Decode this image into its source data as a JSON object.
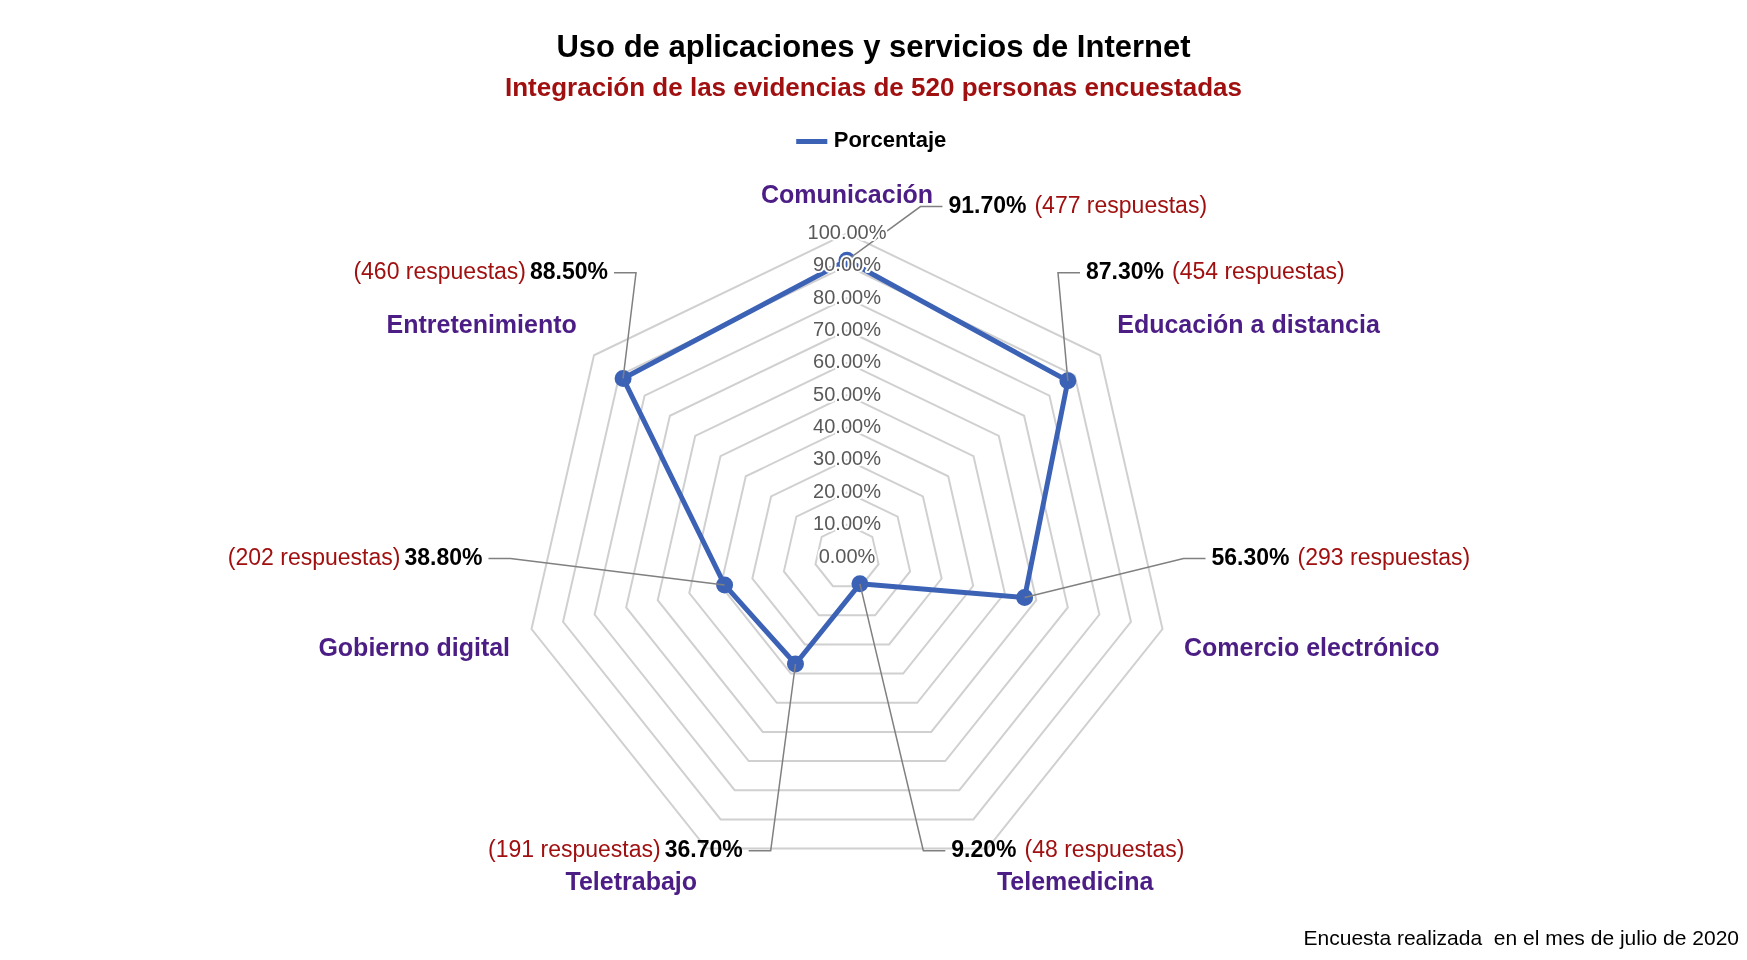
{
  "chart_data": {
    "type": "radar",
    "title": "Uso de aplicaciones y servicios de Internet",
    "subtitle": "Integración de las evidencias de 520 personas encuestadas",
    "categories": [
      "Comunicación",
      "Educación a distancia",
      "Comercio electrónico",
      "Telemedicina",
      "Teletrabajo",
      "Gobierno digital",
      "Entretenimiento"
    ],
    "series": [
      {
        "name": "Porcentaje",
        "color": "#3c62b6",
        "values": [
          91.7,
          87.3,
          56.3,
          9.2,
          36.7,
          38.8,
          88.5
        ],
        "value_labels": [
          "91.70%",
          "87.30%",
          "56.30%",
          "9.20%",
          "36.70%",
          "38.80%",
          "88.50%"
        ]
      }
    ],
    "ylim": [
      0,
      100
    ],
    "yticks": [
      {
        "value": 0,
        "label": "0.00%"
      },
      {
        "value": 10,
        "label": "10.00%"
      },
      {
        "value": 20,
        "label": "20.00%"
      },
      {
        "value": 30,
        "label": "30.00%"
      },
      {
        "value": 40,
        "label": "40.00%"
      },
      {
        "value": 50,
        "label": "50.00%"
      },
      {
        "value": 60,
        "label": "60.00%"
      },
      {
        "value": 70,
        "label": "70.00%"
      },
      {
        "value": 80,
        "label": "80.00%"
      },
      {
        "value": 90,
        "label": "90.00%"
      },
      {
        "value": 100,
        "label": "100.00%"
      }
    ],
    "grid": true,
    "legend": "top",
    "marker": "circle",
    "line_style": "solid",
    "annotations": [
      {
        "text": "(477 respuestas)",
        "x": "Comunicación"
      },
      {
        "text": "(454 respuestas)",
        "x": "Educación a distancia"
      },
      {
        "text": "(293 respuestas)",
        "x": "Comercio electrónico"
      },
      {
        "text": "(48 respuestas)",
        "x": "Telemedicina"
      },
      {
        "text": "(191 respuestas)",
        "x": "Teletrabajo"
      },
      {
        "text": "(202 respuestas)",
        "x": "Gobierno digital"
      },
      {
        "text": "(460 respuestas)",
        "x": "Entretenimiento"
      },
      "Encuesta realizada  en el mes de julio de 2020"
    ]
  }
}
